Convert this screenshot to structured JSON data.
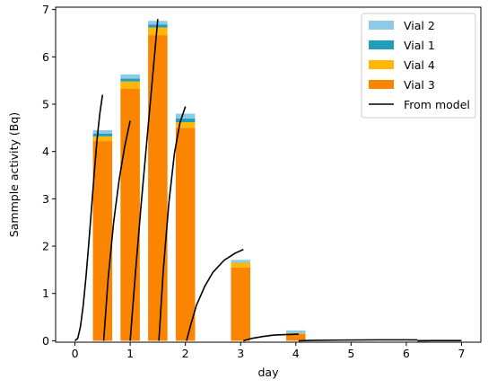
{
  "chart_data": {
    "type": "bar",
    "title": "",
    "xlabel": "day",
    "ylabel": "Sammple activity (Bq)",
    "xlim": [
      -0.35,
      7.35
    ],
    "ylim": [
      -0.03,
      7.05
    ],
    "xticks": [
      0,
      1,
      2,
      3,
      4,
      5,
      6,
      7
    ],
    "yticks": [
      0,
      1,
      2,
      3,
      4,
      5,
      6,
      7
    ],
    "bar_width": 0.35,
    "grid": false,
    "legend_location": "upper right",
    "bar_groups": [
      {
        "x": 0.5,
        "segments": [
          4.22,
          0.1,
          0.06,
          0.07
        ]
      },
      {
        "x": 1.0,
        "segments": [
          5.33,
          0.15,
          0.06,
          0.09
        ]
      },
      {
        "x": 1.5,
        "segments": [
          6.46,
          0.16,
          0.06,
          0.08
        ]
      },
      {
        "x": 2.0,
        "segments": [
          4.5,
          0.12,
          0.08,
          0.1
        ]
      },
      {
        "x": 3.0,
        "segments": [
          1.55,
          0.1,
          0.0,
          0.06
        ]
      },
      {
        "x": 4.0,
        "segments": [
          0.14,
          0.02,
          0.0,
          0.06
        ]
      },
      {
        "x": 6.2,
        "segments": [
          0.0,
          0.0,
          0.0,
          0.02
        ]
      }
    ],
    "series": [
      {
        "name": "Vial 2",
        "color": "#8ecae6",
        "kind": "bar",
        "segment_index": 3
      },
      {
        "name": "Vial 1",
        "color": "#219ebc",
        "kind": "bar",
        "segment_index": 2
      },
      {
        "name": "Vial 4",
        "color": "#ffb703",
        "kind": "bar",
        "segment_index": 1
      },
      {
        "name": "Vial 3",
        "color": "#fb8500",
        "kind": "bar",
        "segment_index": 0
      },
      {
        "name": "From model",
        "color": "#000000",
        "kind": "line"
      }
    ],
    "model_curves": [
      {
        "points": [
          [
            0.0,
            0.0
          ],
          [
            0.05,
            0.05
          ],
          [
            0.1,
            0.3
          ],
          [
            0.15,
            0.75
          ],
          [
            0.2,
            1.35
          ],
          [
            0.25,
            2.05
          ],
          [
            0.3,
            2.8
          ],
          [
            0.35,
            3.55
          ],
          [
            0.4,
            4.25
          ],
          [
            0.45,
            4.8
          ],
          [
            0.5,
            5.2
          ]
        ]
      },
      {
        "points": [
          [
            0.52,
            0.0
          ],
          [
            0.6,
            1.3
          ],
          [
            0.7,
            2.5
          ],
          [
            0.8,
            3.4
          ],
          [
            0.9,
            4.1
          ],
          [
            1.0,
            4.65
          ]
        ]
      },
      {
        "points": [
          [
            1.0,
            0.0
          ],
          [
            1.1,
            1.5
          ],
          [
            1.2,
            2.9
          ],
          [
            1.3,
            4.2
          ],
          [
            1.4,
            5.5
          ],
          [
            1.5,
            6.8
          ]
        ]
      },
      {
        "points": [
          [
            1.52,
            0.0
          ],
          [
            1.6,
            1.5
          ],
          [
            1.7,
            2.9
          ],
          [
            1.8,
            3.95
          ],
          [
            1.9,
            4.6
          ],
          [
            2.0,
            4.95
          ]
        ]
      },
      {
        "points": [
          [
            2.02,
            0.0
          ],
          [
            2.1,
            0.35
          ],
          [
            2.2,
            0.75
          ],
          [
            2.35,
            1.15
          ],
          [
            2.5,
            1.45
          ],
          [
            2.7,
            1.7
          ],
          [
            2.9,
            1.85
          ],
          [
            3.05,
            1.93
          ]
        ]
      },
      {
        "points": [
          [
            3.05,
            0.0
          ],
          [
            3.2,
            0.05
          ],
          [
            3.4,
            0.09
          ],
          [
            3.6,
            0.12
          ],
          [
            3.8,
            0.13
          ],
          [
            4.05,
            0.14
          ]
        ]
      },
      {
        "points": [
          [
            4.05,
            0.0
          ],
          [
            4.3,
            0.01
          ],
          [
            4.8,
            0.015
          ],
          [
            5.5,
            0.02
          ],
          [
            6.2,
            0.02
          ]
        ]
      },
      {
        "points": [
          [
            6.2,
            0.0
          ],
          [
            6.5,
            0.005
          ],
          [
            7.0,
            0.005
          ]
        ]
      }
    ]
  }
}
